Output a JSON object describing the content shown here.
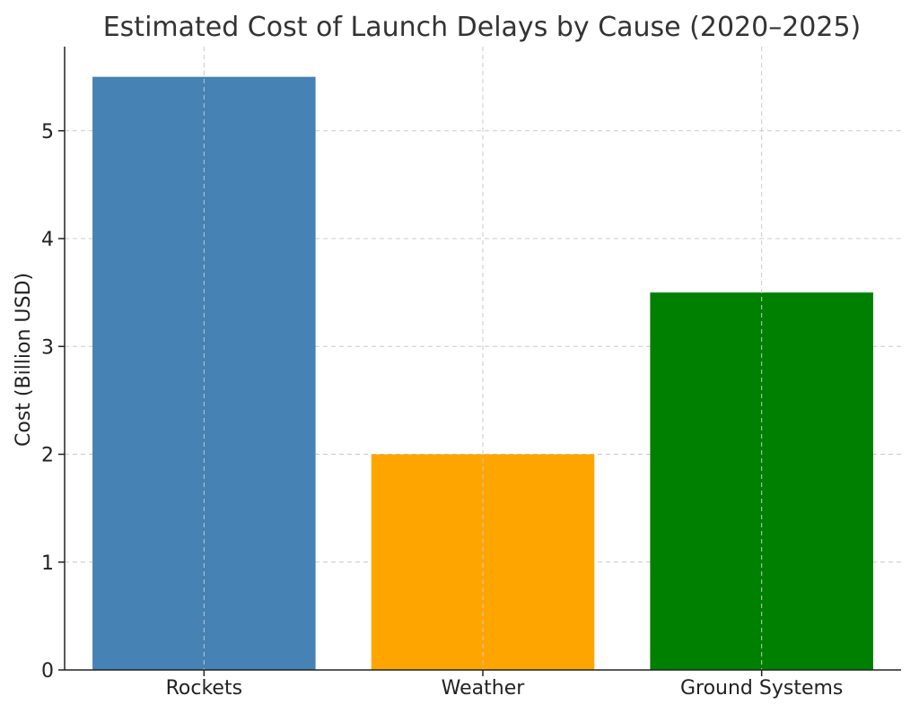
{
  "chart_data": {
    "type": "bar",
    "title": "Estimated Cost of Launch Delays by Cause (2020–2025)",
    "xlabel": "",
    "ylabel": "Cost (Billion USD)",
    "categories": [
      "Rockets",
      "Weather",
      "Ground Systems"
    ],
    "values": [
      5.5,
      2.0,
      3.5
    ],
    "colors": [
      "#4682b4",
      "#ffa500",
      "#008000"
    ],
    "ylim": [
      0,
      5.78
    ],
    "yticks": [
      0,
      1,
      2,
      3,
      4,
      5
    ],
    "grid": true
  }
}
